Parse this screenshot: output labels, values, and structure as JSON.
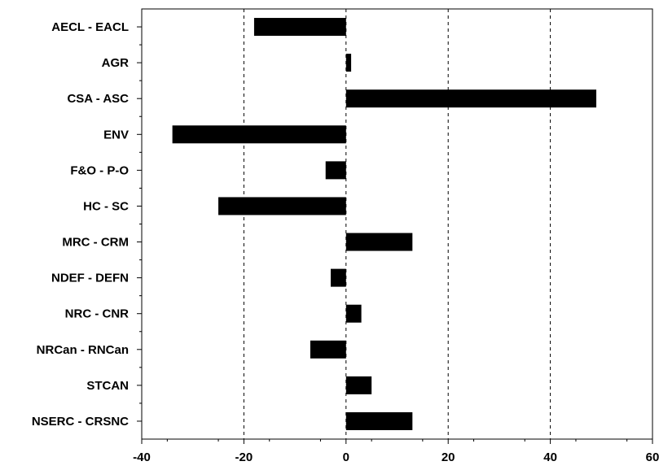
{
  "chart_data": {
    "type": "bar",
    "orientation": "horizontal",
    "categories": [
      "AECL - EACL",
      "AGR",
      "CSA - ASC",
      "ENV",
      "F&O - P-O",
      "HC - SC",
      "MRC - CRM",
      "NDEF - DEFN",
      "NRC - CNR",
      "NRCan - RNCan",
      "STCAN",
      "NSERC - CRSNC"
    ],
    "values": [
      -18,
      1,
      49,
      -34,
      -4,
      -25,
      13,
      -3,
      3,
      -7,
      5,
      13
    ],
    "xlim": [
      -40,
      60
    ],
    "xticks": [
      -40,
      -20,
      0,
      20,
      40,
      60
    ],
    "title": "",
    "xlabel": "",
    "ylabel": "",
    "grid": "vertical dashed at -20, 0, 20, 40",
    "bar_color": "#000000"
  }
}
